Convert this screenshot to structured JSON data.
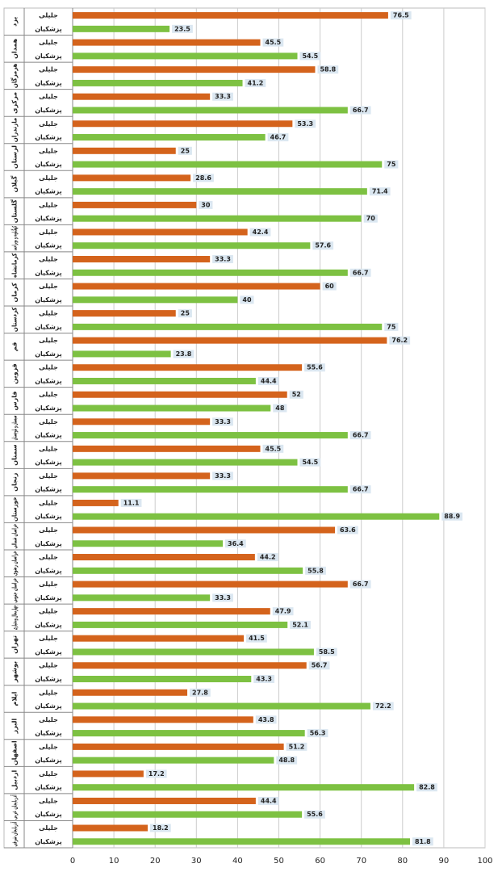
{
  "chart_data": {
    "type": "bar",
    "orientation": "horizontal",
    "categories": [
      "یزد",
      "همدان",
      "هرمزگان",
      "مرکزی",
      "مازندران",
      "لرستان",
      "گیلان",
      "گلستان",
      "کهگیلویه و بویراحمد",
      "کرمانشاه",
      "کرمان",
      "کردستان",
      "قم",
      "قزوین",
      "فارس",
      "سیستان و بلوچستان",
      "سمنان",
      "زنجان",
      "خوزستان",
      "خراسان شمالی",
      "خراسان رضوی",
      "خراسان جنوبی",
      "چهارمحال وبختیاری",
      "تهران",
      "بوشهر",
      "ایلام",
      "البرز",
      "اصفهان",
      "اردبیل",
      "آذربایجان غربی",
      "آذربایجان شرقی"
    ],
    "series": [
      {
        "name": "جلیلی",
        "color": "#d4631c",
        "values": [
          76.5,
          45.5,
          58.8,
          33.3,
          53.3,
          25,
          28.6,
          30,
          42.4,
          33.3,
          60,
          25,
          76.2,
          55.6,
          52,
          33.3,
          45.5,
          33.3,
          11.1,
          63.6,
          44.2,
          66.7,
          47.9,
          41.5,
          56.7,
          27.8,
          43.8,
          51.2,
          17.2,
          44.4,
          18.2
        ]
      },
      {
        "name": "پزشکیان",
        "color": "#7dc142",
        "values": [
          23.5,
          54.5,
          41.2,
          66.7,
          46.7,
          75,
          71.4,
          70,
          57.6,
          66.7,
          40,
          75,
          23.8,
          44.4,
          48,
          66.7,
          54.5,
          66.7,
          88.9,
          36.4,
          55.8,
          33.3,
          52.1,
          58.5,
          43.3,
          72.2,
          56.3,
          48.8,
          82.8,
          55.6,
          81.8
        ]
      }
    ],
    "xlim": [
      0,
      100
    ],
    "xticks": [
      0,
      10,
      20,
      30,
      40,
      50,
      60,
      70,
      80,
      90,
      100
    ],
    "grid": true
  }
}
